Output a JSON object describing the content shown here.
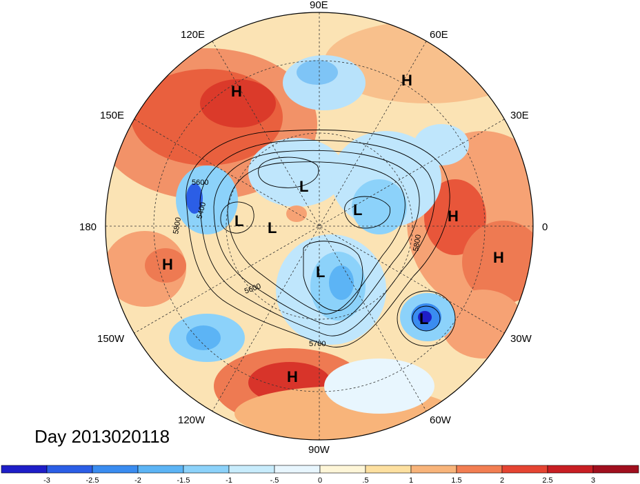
{
  "title": "Day 2013020118",
  "projection": "polar stereographic, northern hemisphere",
  "longitude_labels": {
    "lon_90E": "90E",
    "lon_60E": "60E",
    "lon_30E": "30E",
    "lon_0": "0",
    "lon_30W": "30W",
    "lon_60W": "60W",
    "lon_90W": "90W",
    "lon_120W": "120W",
    "lon_150W": "150W",
    "lon_180": "180",
    "lon_150E": "150E",
    "lon_120E": "120E"
  },
  "pressure_centers": [
    {
      "type": "H",
      "region": "east-asia"
    },
    {
      "type": "H",
      "region": "western-russia"
    },
    {
      "type": "H",
      "region": "europe"
    },
    {
      "type": "H",
      "region": "north-africa"
    },
    {
      "type": "H",
      "region": "central-pacific"
    },
    {
      "type": "H",
      "region": "mexico"
    },
    {
      "type": "L",
      "region": "east-siberia"
    },
    {
      "type": "L",
      "region": "bering-sea"
    },
    {
      "type": "L",
      "region": "alaska"
    },
    {
      "type": "L",
      "region": "barents-sea"
    },
    {
      "type": "L",
      "region": "hudson-bay"
    },
    {
      "type": "L",
      "region": "north-atlantic"
    }
  ],
  "contour_labels": [
    "5600",
    "5400",
    "5800",
    "5600",
    "5700",
    "5800"
  ],
  "colorbar": {
    "ticks": [
      "-3",
      "-2.5",
      "-2",
      "-1.5",
      "-1",
      "-.5",
      "0",
      ".5",
      "1",
      "1.5",
      "2",
      "2.5",
      "3"
    ],
    "colors": [
      "#1e1ec8",
      "#2b5ee6",
      "#3a8cf0",
      "#5cb4f5",
      "#8cd2fa",
      "#c8ecfc",
      "#e8f6fe",
      "#fef6d8",
      "#fde0a0",
      "#f8b47a",
      "#f27e52",
      "#e54432",
      "#c81e23",
      "#a00f1e"
    ]
  }
}
